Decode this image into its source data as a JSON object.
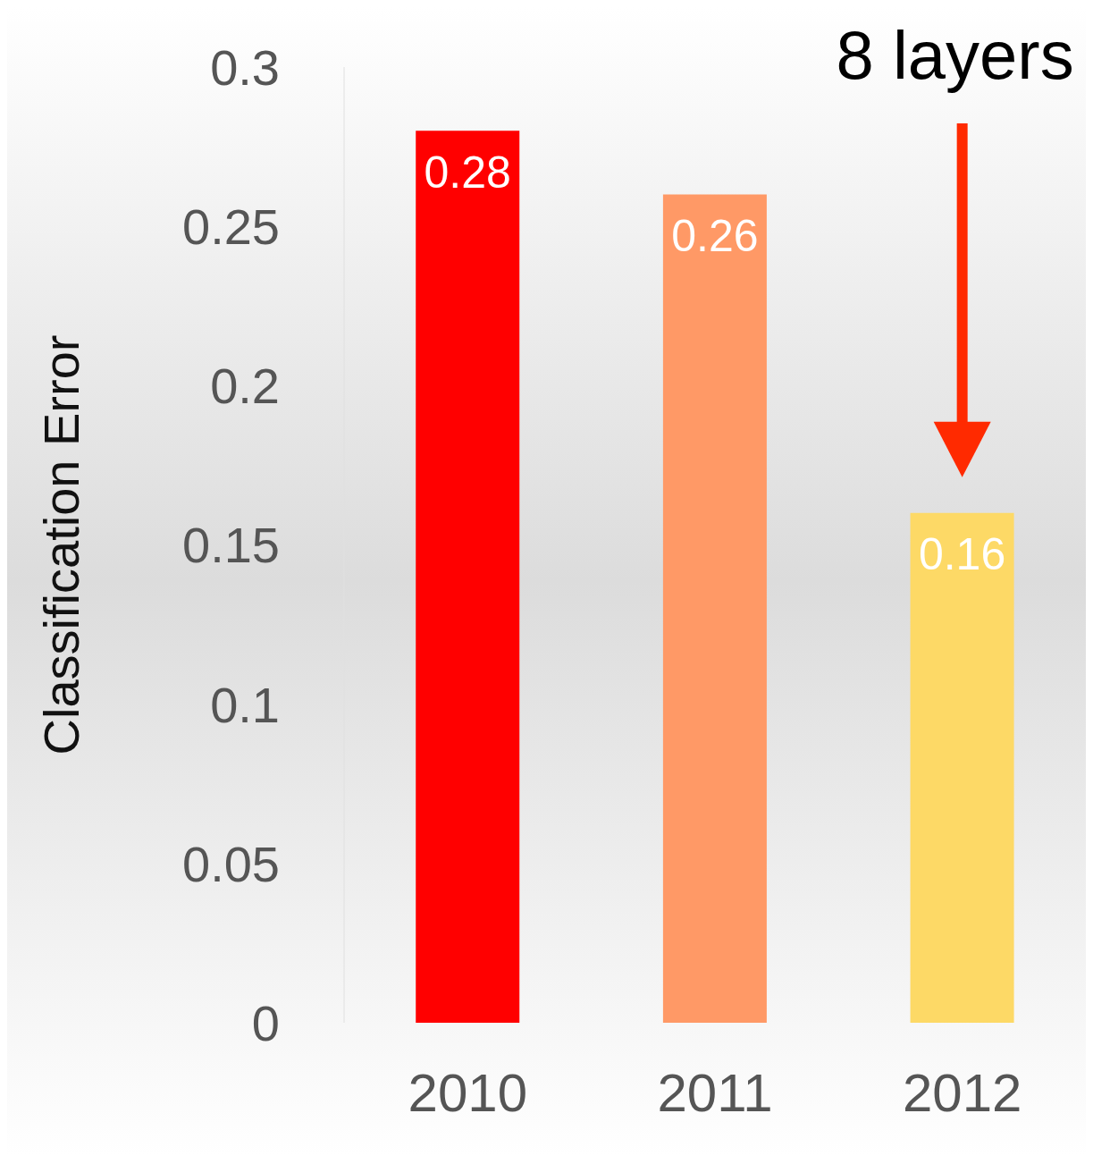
{
  "chart_data": {
    "type": "bar",
    "ylabel": "Classification Error",
    "categories": [
      "2010",
      "2011",
      "2012"
    ],
    "values": [
      0.28,
      0.26,
      0.16
    ],
    "colors": [
      "#ff0000",
      "#ff9966",
      "#fdd966"
    ],
    "ylim": [
      0,
      0.3
    ],
    "yticks": [
      0,
      0.05,
      0.1,
      0.15,
      0.2,
      0.25,
      0.3
    ],
    "grid": false,
    "data_labels": true,
    "annotations": [
      "8 layers"
    ]
  }
}
